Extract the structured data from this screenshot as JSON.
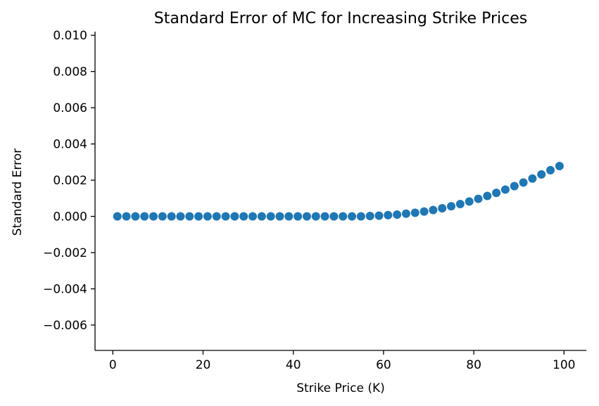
{
  "chart_data": {
    "type": "scatter",
    "title": "Standard Error of MC for Increasing Strike Prices",
    "xlabel": "Strike Price (K)",
    "ylabel": "Standard Error",
    "xlim": [
      -3.95,
      104.95
    ],
    "ylim": [
      -0.0074,
      0.0102
    ],
    "xticks": [
      0,
      20,
      40,
      60,
      80,
      100
    ],
    "xtick_labels": [
      "0",
      "20",
      "40",
      "60",
      "80",
      "100"
    ],
    "yticks": [
      -0.006,
      -0.004,
      -0.002,
      0.0,
      0.002,
      0.004,
      0.006,
      0.008,
      0.01
    ],
    "ytick_labels": [
      "−0.006",
      "−0.004",
      "−0.002",
      "0.000",
      "0.002",
      "0.004",
      "0.006",
      "0.008",
      "0.010"
    ],
    "grid": false,
    "color": "#1f77b4",
    "x": [
      1,
      3,
      5,
      7,
      9,
      11,
      13,
      15,
      17,
      19,
      21,
      23,
      25,
      27,
      29,
      31,
      33,
      35,
      37,
      39,
      41,
      43,
      45,
      47,
      49,
      51,
      53,
      55,
      57,
      59,
      61,
      63,
      65,
      67,
      69,
      71,
      73,
      75,
      77,
      79,
      81,
      83,
      85,
      87,
      89,
      91,
      93,
      95,
      97,
      99
    ],
    "y": [
      0.0,
      0.0,
      0.0,
      0.0,
      0.0,
      0.0,
      0.0,
      0.0,
      0.0,
      0.0,
      0.0,
      0.0,
      0.0,
      0.0,
      0.0,
      0.0,
      0.0,
      0.0,
      0.0,
      0.0,
      0.0,
      0.0,
      0.0,
      0.0,
      0.0,
      0.0,
      0.0,
      0.0,
      2e-05,
      4e-05,
      7e-05,
      0.0001,
      0.00015,
      0.0002,
      0.00027,
      0.00035,
      0.00045,
      0.00056,
      0.00068,
      0.00082,
      0.00097,
      0.00113,
      0.0013,
      0.00148,
      0.00167,
      0.00187,
      0.00209,
      0.00232,
      0.00255,
      0.00278
    ]
  }
}
